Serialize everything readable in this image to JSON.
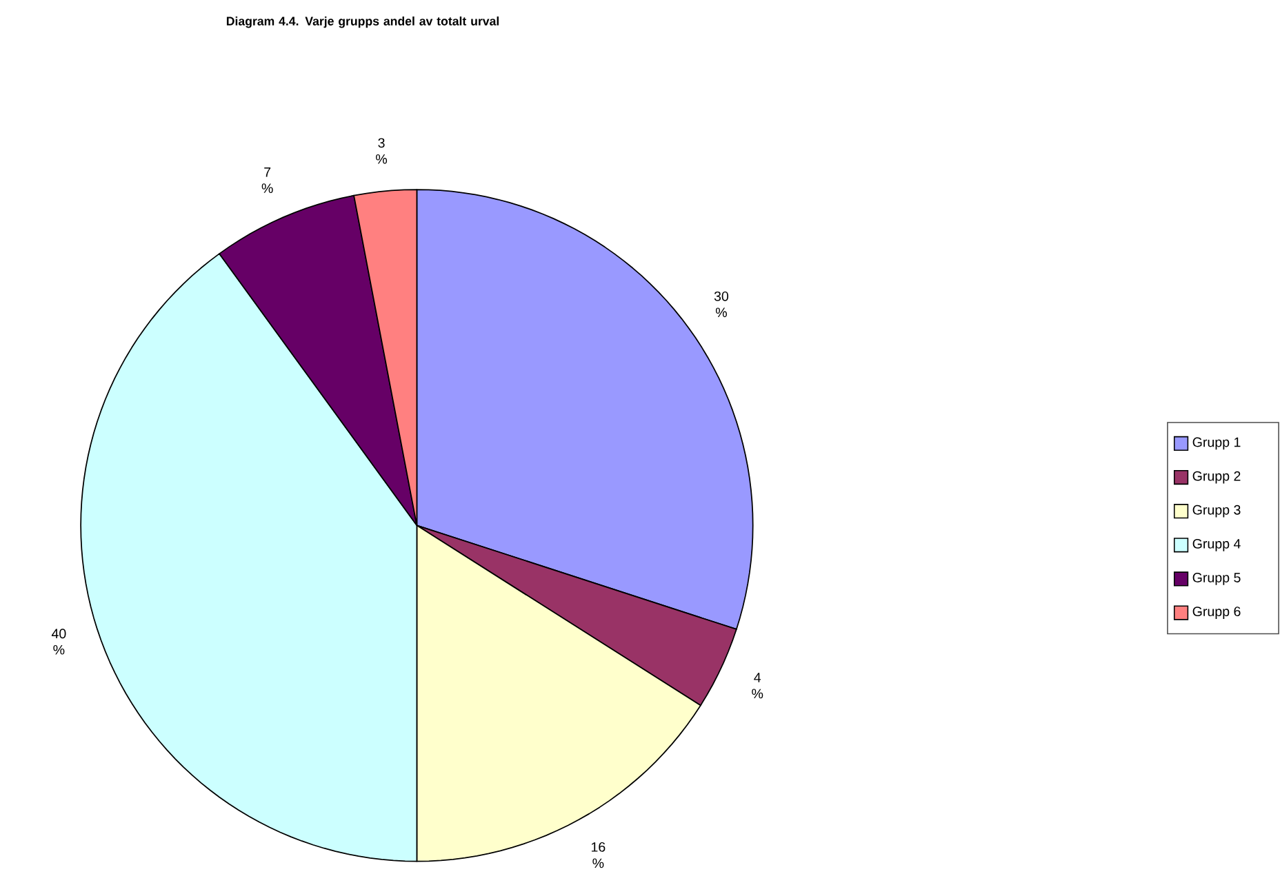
{
  "chart_data": {
    "type": "pie",
    "title": "Diagram 4.4. Varje grupps andel av totalt urval",
    "categories": [
      "Grupp 1",
      "Grupp 2",
      "Grupp 3",
      "Grupp 4",
      "Grupp 5",
      "Grupp 6"
    ],
    "values": [
      30,
      4,
      16,
      40,
      7,
      3
    ],
    "colors": [
      "#9999ff",
      "#993366",
      "#ffffcc",
      "#ccffff",
      "#660066",
      "#ff8080"
    ],
    "value_labels": [
      "30 %",
      "4 %",
      "16 %",
      "40 %",
      "7 %",
      "3 %"
    ],
    "legend": "right"
  }
}
